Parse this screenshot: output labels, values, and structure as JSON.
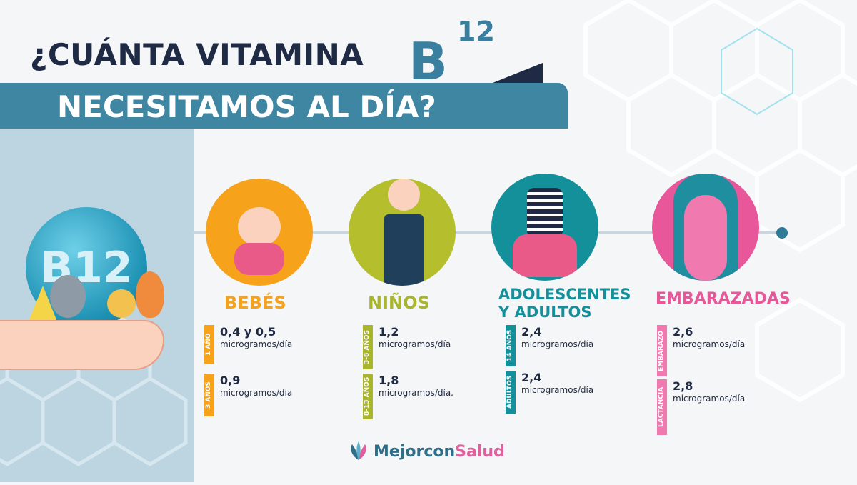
{
  "title": {
    "line1": "¿CUÁNTA VITAMINA",
    "vitamin_letter": "B",
    "vitamin_number": "12",
    "line2": "NECESITAMOS AL DÍA?"
  },
  "badge_text": "B12",
  "colors": {
    "navy": "#1f2a44",
    "banner": "#3f86a2",
    "bebes": "#f7a21b",
    "ninos": "#a9b52c",
    "adultos": "#14909a",
    "embarazadas": "#e8579a"
  },
  "groups": [
    {
      "name": "BEBÉS",
      "items": [
        {
          "tag": "1 AÑO",
          "value": "0,4 y 0,5",
          "unit": "microgramos/día"
        },
        {
          "tag": "3 AÑOS",
          "value": "0,9",
          "unit": "microgramos/día"
        }
      ]
    },
    {
      "name": "NIÑOS",
      "items": [
        {
          "tag": "3-8 AÑOS",
          "value": "1,2",
          "unit": "microgramos/día"
        },
        {
          "tag": "8-13 AÑOS",
          "value": "1,8",
          "unit": "microgramos/día."
        }
      ]
    },
    {
      "name": "ADOLESCENTES Y ADULTOS",
      "items": [
        {
          "tag": "14 AÑOS",
          "value": "2,4",
          "unit": "microgramos/día"
        },
        {
          "tag": "ADULTOS",
          "value": "2,4",
          "unit": "microgramos/día"
        }
      ]
    },
    {
      "name": "EMBARAZADAS",
      "items": [
        {
          "tag": "EMBARAZO",
          "value": "2,6",
          "unit": "microgramos/día"
        },
        {
          "tag": "LACTANCIA",
          "value": "2,8",
          "unit": "microgramos/día"
        }
      ]
    }
  ],
  "logo": {
    "part1": "Mejorcon",
    "part2": "Salud"
  }
}
